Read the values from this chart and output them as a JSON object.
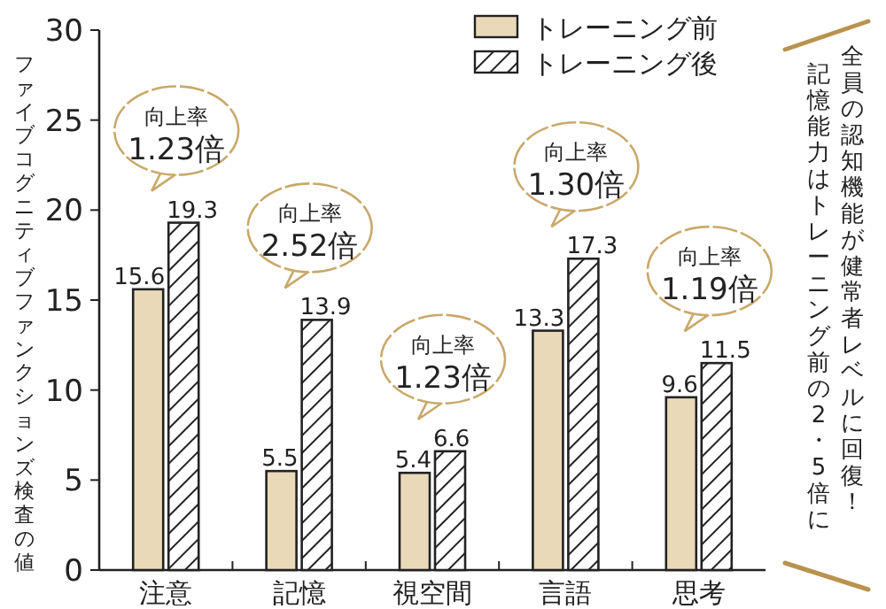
{
  "chart_data": {
    "type": "bar",
    "ylabel": "ファイブコグニティブファンクションズ検査の値",
    "categories": [
      "注意",
      "記憶",
      "視空間",
      "言語",
      "思考"
    ],
    "series": [
      {
        "name": "トレーニング前",
        "color": "#ead9b8",
        "values": [
          15.6,
          5.5,
          5.4,
          13.3,
          9.6
        ]
      },
      {
        "name": "トレーニング後",
        "color": "#222222",
        "values": [
          19.3,
          13.9,
          6.6,
          17.3,
          11.5
        ]
      }
    ],
    "ylim": [
      0,
      30
    ],
    "yticks": [
      0,
      5,
      10,
      15,
      20,
      25,
      30
    ],
    "data_labels": true,
    "legend": "top right",
    "annotations": [
      "向上率\n1.23倍",
      "向上率\n2.52倍",
      "向上率\n1.23倍",
      "向上率\n1.30倍",
      "向上率\n1.19倍",
      "全員の認知機能が健常者レベルに回復！",
      "記憶能力はトレーニング前の2・5倍に"
    ]
  }
}
